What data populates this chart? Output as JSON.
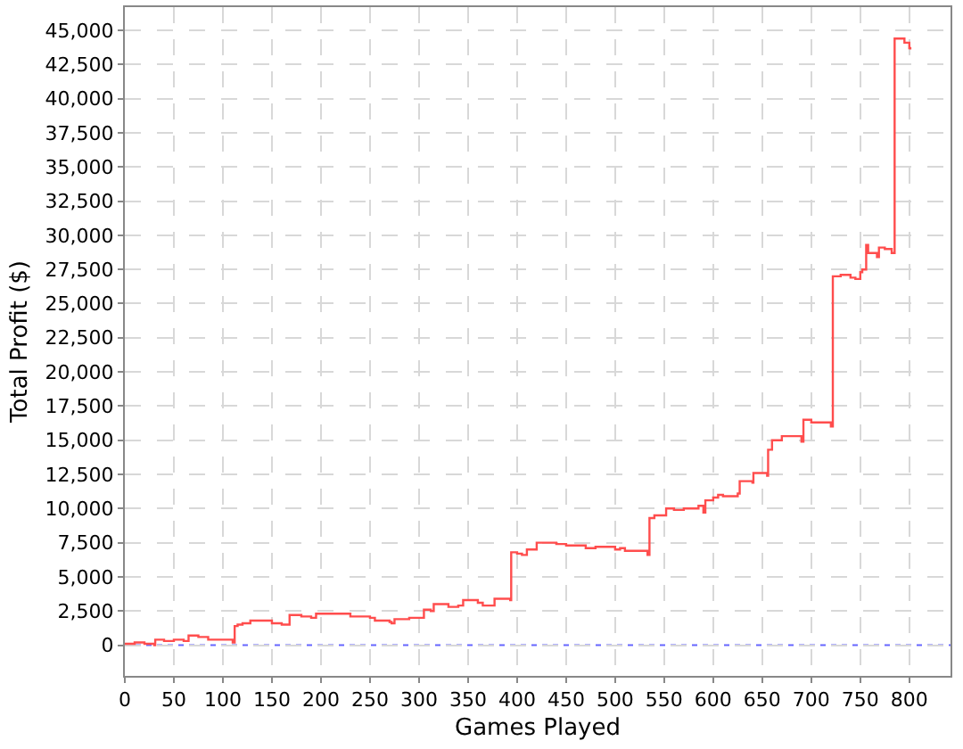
{
  "chart_data": {
    "type": "step",
    "xlabel": "Games Played",
    "ylabel": "Total Profit ($)",
    "x": [
      0,
      10,
      20,
      30,
      31,
      40,
      50,
      60,
      65,
      75,
      85,
      105,
      110,
      112,
      115,
      120,
      128,
      150,
      160,
      168,
      180,
      190,
      195,
      230,
      250,
      255,
      270,
      272,
      275,
      290,
      305,
      312,
      315,
      330,
      340,
      345,
      360,
      365,
      377,
      393,
      394,
      400,
      405,
      410,
      420,
      440,
      450,
      470,
      480,
      500,
      505,
      510,
      530,
      533,
      535,
      540,
      552,
      560,
      570,
      585,
      590,
      592,
      600,
      605,
      610,
      625,
      627,
      640,
      641,
      655,
      656,
      660,
      670,
      690,
      692,
      700,
      720,
      722,
      730,
      740,
      745,
      750,
      752,
      756,
      758,
      767,
      769,
      775,
      782,
      785,
      790,
      795,
      800,
      801
    ],
    "series": [
      {
        "color": "#ff4d4d",
        "values": [
          100,
          200,
          100,
          0,
          400,
          300,
          400,
          300,
          700,
          600,
          400,
          400,
          200,
          1400,
          1500,
          1600,
          1800,
          1600,
          1500,
          2200,
          2100,
          2000,
          2300,
          2100,
          2000,
          1800,
          1700,
          1600,
          1900,
          2000,
          2600,
          2500,
          3000,
          2800,
          2900,
          3300,
          3100,
          2900,
          3400,
          3300,
          6800,
          6700,
          6600,
          7000,
          7500,
          7400,
          7300,
          7100,
          7200,
          7000,
          7100,
          6900,
          6900,
          6600,
          9300,
          9500,
          10000,
          9900,
          10000,
          10200,
          9700,
          10600,
          10800,
          11000,
          10900,
          11100,
          12000,
          11900,
          12600,
          12400,
          14300,
          15000,
          15300,
          14900,
          16500,
          16300,
          16000,
          27000,
          27100,
          26900,
          26800,
          27300,
          27500,
          29300,
          28700,
          28400,
          29100,
          29000,
          28700,
          44400,
          44400,
          44100,
          43700,
          43600
        ]
      }
    ],
    "xlim": [
      0,
      842
    ],
    "ylim": [
      -2250,
      46700
    ],
    "xticks": [
      0,
      50,
      100,
      150,
      200,
      250,
      300,
      350,
      400,
      450,
      500,
      550,
      600,
      650,
      700,
      750,
      800
    ],
    "yticks": [
      0,
      {
        "value": 2500,
        "label": "2,500"
      },
      {
        "value": 5000,
        "label": "5,000"
      },
      {
        "value": 7500,
        "label": "7,500"
      },
      {
        "value": 10000,
        "label": "10,000"
      },
      {
        "value": 12500,
        "label": "12,500"
      },
      {
        "value": 15000,
        "label": "15,000"
      },
      {
        "value": 17500,
        "label": "17,500"
      },
      {
        "value": 20000,
        "label": "20,000"
      },
      {
        "value": 22500,
        "label": "22,500"
      },
      {
        "value": 25000,
        "label": "25,000"
      },
      {
        "value": 27500,
        "label": "27,500"
      },
      {
        "value": 30000,
        "label": "30,000"
      },
      {
        "value": 32500,
        "label": "32,500"
      },
      {
        "value": 35000,
        "label": "35,000"
      },
      {
        "value": 37500,
        "label": "37,500"
      },
      {
        "value": 40000,
        "label": "40,000"
      },
      {
        "value": 42500,
        "label": "42,500"
      },
      {
        "value": 45000,
        "label": "45,000"
      }
    ],
    "ref_lines": [
      {
        "axis": "y",
        "value": 0,
        "color": "#6666ff",
        "line_style": "dotted"
      }
    ],
    "grid": true,
    "marker": "none",
    "line_style": "solid"
  }
}
